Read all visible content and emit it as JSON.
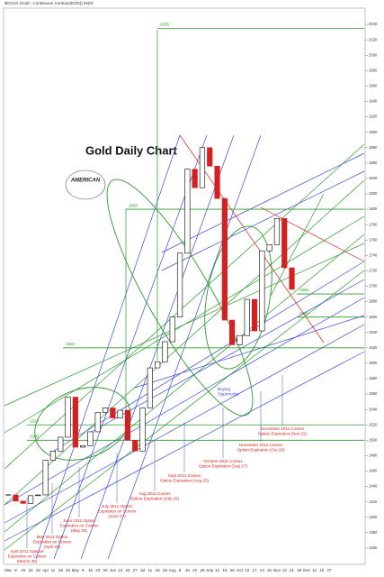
{
  "chart_data": {
    "type": "candlestick",
    "header": "$GOLD (Gold - Continuous Contract(EOD)) INDX",
    "title": "Gold Daily Chart",
    "logo": "AMERICAN",
    "categories": [
      "Mar",
      "8",
      "15",
      "22",
      "28",
      "Apr",
      "11",
      "18",
      "25",
      "May",
      "9",
      "16",
      "23",
      "30",
      "Jun",
      "13",
      "20",
      "27",
      "Jul",
      "11",
      "18",
      "25",
      "Aug",
      "8",
      "15",
      "22",
      "29",
      "Sep",
      "12",
      "19",
      "26",
      "Oct",
      "10",
      "17",
      "24",
      "31",
      "Nov",
      "14",
      "21",
      "28",
      "Dec",
      "12",
      "19",
      "27"
    ],
    "values": [
      1429,
      1421,
      1418,
      1428,
      1429,
      1474,
      1486,
      1504,
      1556,
      1491,
      1493,
      1511,
      1536,
      1542,
      1529,
      1539,
      1500,
      1486,
      1542,
      1594,
      1602,
      1628,
      1660,
      1743,
      1852,
      1828,
      1880,
      1856,
      1814,
      1656,
      1624,
      1636,
      1683,
      1642,
      1746,
      1754,
      1788,
      1724,
      1696,
      null,
      null,
      null,
      null,
      null
    ],
    "up_color": "#000000",
    "down_color": "#d42020",
    "ylim": [
      1340,
      2060
    ],
    "yticks": [
      1360,
      1380,
      1400,
      1420,
      1440,
      1460,
      1480,
      1500,
      1520,
      1540,
      1560,
      1580,
      1600,
      1620,
      1640,
      1660,
      1680,
      1700,
      1720,
      1740,
      1760,
      1780,
      1800,
      1820,
      1840,
      1860,
      1880,
      1900,
      1920,
      1940,
      1960,
      1980,
      2000,
      2020,
      2040
    ],
    "grid": false,
    "levels": [
      2035,
      1800,
      1690,
      1660,
      1620,
      1520,
      1500
    ],
    "level_color": "#2a9a2a",
    "annotations": [
      [
        "April 2011 Options",
        "Expiration on Comex",
        "(March 30)"
      ],
      [
        "May 2011 Option",
        "Expiration on Comex",
        "(April 26)"
      ],
      [
        "June 2011 Option",
        "Expiration on Comex",
        "(May 25)"
      ],
      [
        "July 2011 Option",
        "Expiration on Comex",
        "(June 27)"
      ],
      [
        "Aug 2011 Comex",
        "Option Expiration (July 26)"
      ],
      [
        "Sept 2011 Comex",
        "Option Expiration (Aug 25)"
      ],
      [
        "October 2011 Comex",
        "Option Expiration (Sep 27)"
      ],
      [
        "November 2011 Comex",
        "Option Expiration (Oct 26)"
      ],
      [
        "December 2011 Comex",
        "Option Expiration (Nov 22)"
      ]
    ],
    "note": [
      "Buying",
      "Opportunity"
    ]
  }
}
